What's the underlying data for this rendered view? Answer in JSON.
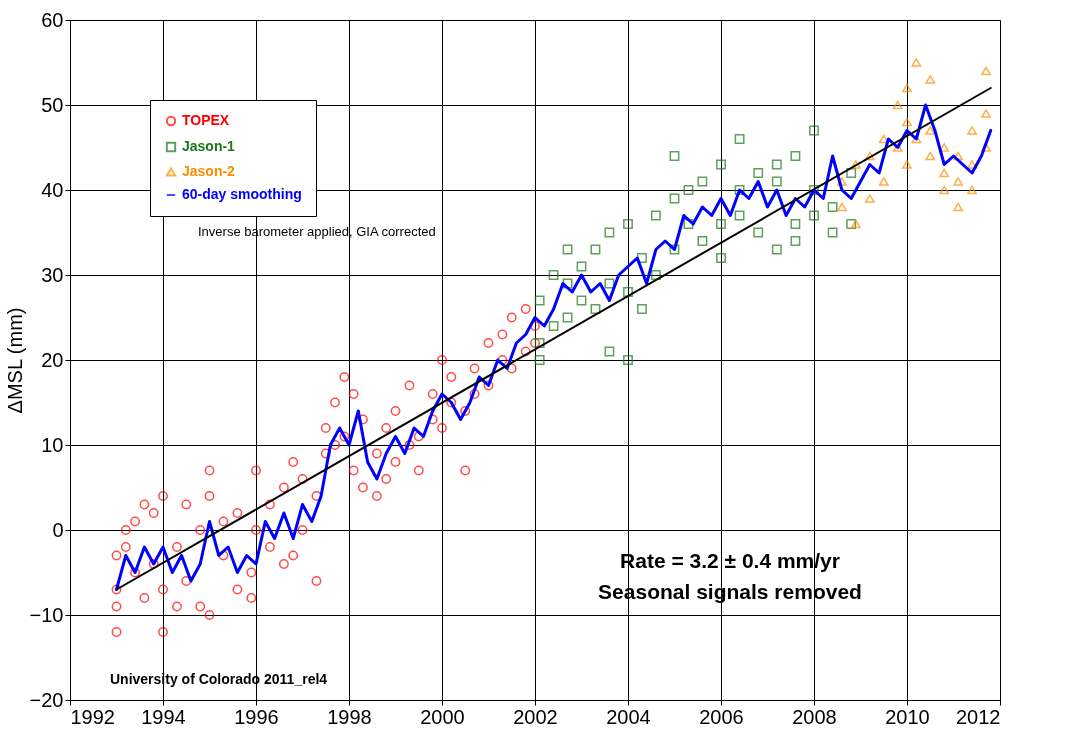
{
  "chart_data": {
    "type": "scatter",
    "ylabel": "ΔMSL (mm)",
    "xlim": [
      1992,
      2012
    ],
    "xticks": [
      1992,
      1994,
      1996,
      1998,
      2000,
      2002,
      2004,
      2006,
      2008,
      2010,
      2012
    ],
    "ylim": [
      -20,
      60
    ],
    "yticks": [
      -20,
      -10,
      0,
      10,
      20,
      30,
      40,
      50,
      60
    ],
    "grid": true,
    "legend": "top left",
    "annotations": [
      "Inverse barometer applied, GIA corrected",
      "Rate = 3.2 ± 0.4 mm/yr",
      "Seasonal signals removed",
      "University of Colorado 2011_rel4"
    ],
    "series": [
      {
        "name": "TOPEX",
        "marker": "circle",
        "color": "#ff0000",
        "x": [
          1993.0,
          1993.0,
          1993.0,
          1993.0,
          1993.2,
          1993.2,
          1993.4,
          1993.4,
          1993.6,
          1993.6,
          1993.8,
          1993.8,
          1994.0,
          1994.0,
          1994.0,
          1994.3,
          1994.3,
          1994.5,
          1994.5,
          1994.8,
          1994.8,
          1995.0,
          1995.0,
          1995.0,
          1995.3,
          1995.3,
          1995.6,
          1995.6,
          1995.9,
          1995.9,
          1996.0,
          1996.0,
          1996.3,
          1996.3,
          1996.6,
          1996.6,
          1996.8,
          1996.8,
          1997.0,
          1997.0,
          1997.3,
          1997.3,
          1997.5,
          1997.5,
          1997.7,
          1997.7,
          1997.9,
          1997.9,
          1998.1,
          1998.1,
          1998.3,
          1998.3,
          1998.6,
          1998.6,
          1998.8,
          1998.8,
          1999.0,
          1999.0,
          1999.3,
          1999.3,
          1999.5,
          1999.5,
          1999.8,
          1999.8,
          2000.0,
          2000.0,
          2000.2,
          2000.2,
          2000.5,
          2000.5,
          2000.7,
          2000.7,
          2001.0,
          2001.0,
          2001.3,
          2001.3,
          2001.5,
          2001.5,
          2001.8,
          2001.8,
          2002.0,
          2002.0
        ],
        "values": [
          -9,
          -12,
          -7,
          -3,
          0,
          -2,
          1,
          -5,
          -8,
          3,
          -4,
          2,
          -12,
          4,
          -7,
          -2,
          -9,
          3,
          -6,
          0,
          -9,
          -10,
          4,
          7,
          -3,
          1,
          -7,
          2,
          -5,
          -8,
          0,
          7,
          3,
          -2,
          5,
          -4,
          8,
          -3,
          6,
          0,
          4,
          -6,
          12,
          9,
          15,
          10,
          11,
          18,
          16,
          7,
          13,
          5,
          9,
          4,
          12,
          6,
          14,
          8,
          17,
          10,
          11,
          7,
          16,
          13,
          20,
          12,
          15,
          18,
          14,
          7,
          19,
          16,
          22,
          17,
          20,
          23,
          25,
          19,
          26,
          21,
          24,
          22
        ]
      },
      {
        "name": "Jason-1",
        "marker": "square",
        "color": "#1a7a1a",
        "x": [
          2002.1,
          2002.1,
          2002.1,
          2002.4,
          2002.4,
          2002.7,
          2002.7,
          2002.7,
          2003.0,
          2003.0,
          2003.3,
          2003.3,
          2003.6,
          2003.6,
          2003.6,
          2004.0,
          2004.0,
          2004.0,
          2004.3,
          2004.3,
          2004.6,
          2004.6,
          2005.0,
          2005.0,
          2005.0,
          2005.3,
          2005.3,
          2005.6,
          2005.6,
          2006.0,
          2006.0,
          2006.0,
          2006.4,
          2006.4,
          2006.4,
          2006.8,
          2006.8,
          2007.2,
          2007.2,
          2007.2,
          2007.6,
          2007.6,
          2007.6,
          2008.0,
          2008.0,
          2008.0,
          2008.4,
          2008.4,
          2008.8,
          2008.8
        ],
        "values": [
          27,
          22,
          20,
          30,
          24,
          29,
          25,
          33,
          31,
          27,
          33,
          26,
          29,
          35,
          21,
          36,
          28,
          20,
          32,
          26,
          37,
          30,
          39,
          33,
          44,
          36,
          40,
          41,
          34,
          36,
          43,
          32,
          40,
          37,
          46,
          42,
          35,
          43,
          33,
          41,
          36,
          44,
          34,
          40,
          37,
          47,
          38,
          35,
          36,
          42
        ]
      },
      {
        "name": "Jason-2",
        "marker": "triangle",
        "color": "#ff8c00",
        "x": [
          2008.6,
          2008.6,
          2008.9,
          2008.9,
          2009.2,
          2009.2,
          2009.5,
          2009.5,
          2009.8,
          2009.8,
          2010.0,
          2010.0,
          2010.0,
          2010.2,
          2010.2,
          2010.5,
          2010.5,
          2010.5,
          2010.8,
          2010.8,
          2010.8,
          2011.1,
          2011.1,
          2011.1,
          2011.4,
          2011.4,
          2011.4,
          2011.7,
          2011.7,
          2011.7
        ],
        "values": [
          38,
          41,
          43,
          36,
          44,
          39,
          46,
          41,
          50,
          45,
          48,
          52,
          43,
          55,
          46,
          53,
          47,
          44,
          45,
          42,
          40,
          44,
          38,
          41,
          47,
          40,
          43,
          54,
          49,
          45
        ]
      },
      {
        "name": "60-day smoothing",
        "type": "line",
        "marker": "none",
        "line_style": "solid",
        "color": "#0000ff",
        "x": [
          1993.0,
          1993.2,
          1993.4,
          1993.6,
          1993.8,
          1994.0,
          1994.2,
          1994.4,
          1994.6,
          1994.8,
          1995.0,
          1995.2,
          1995.4,
          1995.6,
          1995.8,
          1996.0,
          1996.2,
          1996.4,
          1996.6,
          1996.8,
          1997.0,
          1997.2,
          1997.4,
          1997.6,
          1997.8,
          1998.0,
          1998.2,
          1998.4,
          1998.6,
          1998.8,
          1999.0,
          1999.2,
          1999.4,
          1999.6,
          1999.8,
          2000.0,
          2000.2,
          2000.4,
          2000.6,
          2000.8,
          2001.0,
          2001.2,
          2001.4,
          2001.6,
          2001.8,
          2002.0,
          2002.2,
          2002.4,
          2002.6,
          2002.8,
          2003.0,
          2003.2,
          2003.4,
          2003.6,
          2003.8,
          2004.0,
          2004.2,
          2004.4,
          2004.6,
          2004.8,
          2005.0,
          2005.2,
          2005.4,
          2005.6,
          2005.8,
          2006.0,
          2006.2,
          2006.4,
          2006.6,
          2006.8,
          2007.0,
          2007.2,
          2007.4,
          2007.6,
          2007.8,
          2008.0,
          2008.2,
          2008.4,
          2008.6,
          2008.8,
          2009.0,
          2009.2,
          2009.4,
          2009.6,
          2009.8,
          2010.0,
          2010.2,
          2010.4,
          2010.6,
          2010.8,
          2011.0,
          2011.2,
          2011.4,
          2011.6,
          2011.8
        ],
        "values": [
          -7,
          -3,
          -5,
          -2,
          -4,
          -2,
          -5,
          -3,
          -6,
          -4,
          1,
          -3,
          -2,
          -5,
          -3,
          -4,
          1,
          -1,
          2,
          -1,
          3,
          1,
          4,
          10,
          12,
          10,
          14,
          8,
          6,
          9,
          11,
          9,
          12,
          11,
          14,
          16,
          15,
          13,
          15,
          18,
          17,
          20,
          19,
          22,
          23,
          25,
          24,
          26,
          29,
          28,
          30,
          28,
          29,
          27,
          30,
          31,
          32,
          29,
          33,
          34,
          33,
          37,
          36,
          38,
          37,
          39,
          37,
          40,
          39,
          41,
          38,
          40,
          37,
          39,
          38,
          40,
          39,
          44,
          40,
          39,
          41,
          43,
          42,
          46,
          45,
          47,
          46,
          50,
          47,
          43,
          44,
          43,
          42,
          44,
          47
        ]
      },
      {
        "type": "line",
        "marker": "none",
        "line_style": "solid",
        "color": "#000000",
        "x": [
          1993.0,
          2011.8
        ],
        "values": [
          -7,
          52
        ]
      }
    ]
  }
}
